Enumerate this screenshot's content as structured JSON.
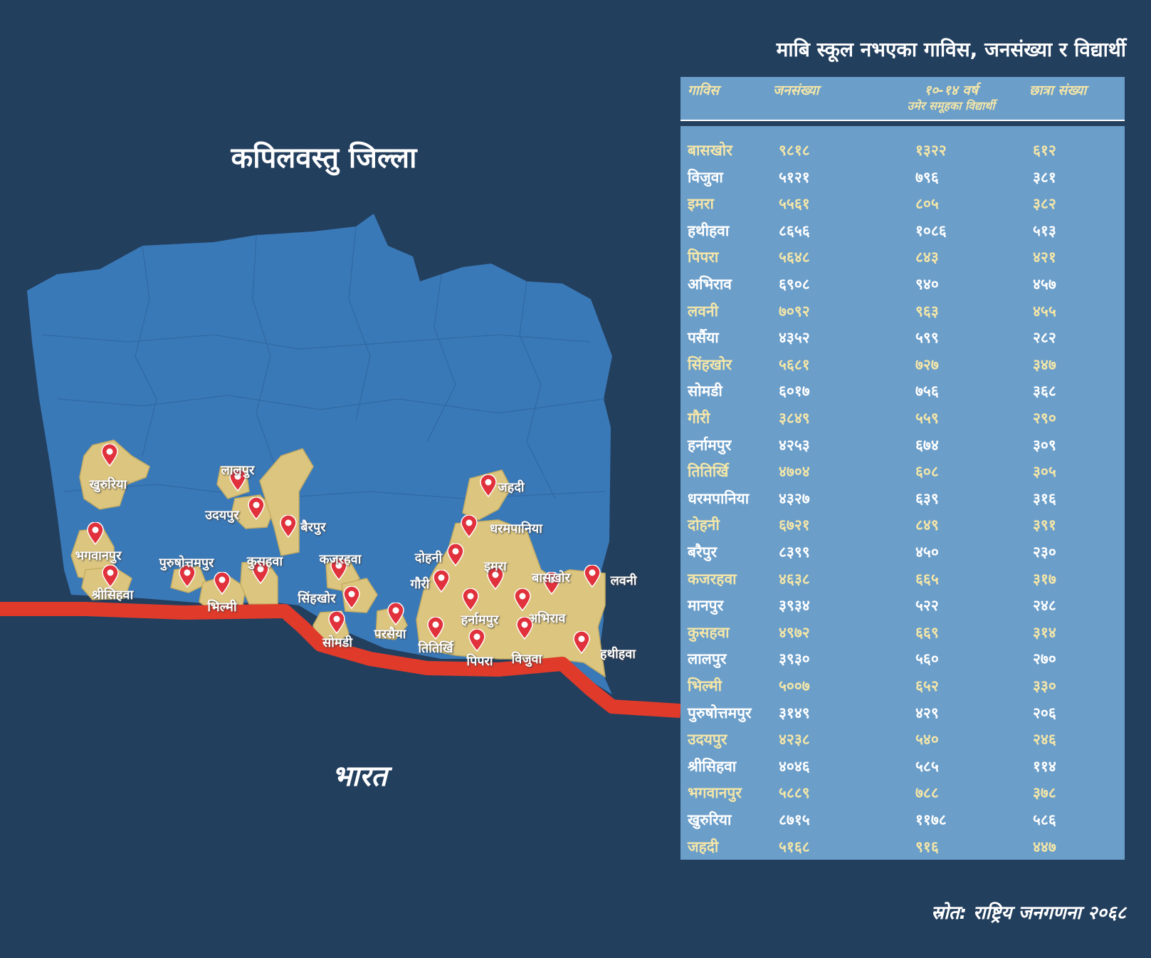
{
  "map": {
    "title": "कपिलवस्तु जिल्ला",
    "country_label": "भारत",
    "colors": {
      "background": "#233f5e",
      "district": "#3a79b8",
      "vdc_highlight": "#dcc57f",
      "border": "#e03a2a",
      "pin": "#e0313c"
    },
    "places": [
      {
        "name": "खुरुरिया"
      },
      {
        "name": "लालपुर"
      },
      {
        "name": "उदयपुर"
      },
      {
        "name": "बैरपुर"
      },
      {
        "name": "भगवानपुर"
      },
      {
        "name": "श्रीसिहवा"
      },
      {
        "name": "पुरुषोत्तमपुर"
      },
      {
        "name": "भिल्मी"
      },
      {
        "name": "कुसहवा"
      },
      {
        "name": "कजरहवा"
      },
      {
        "name": "सिंहखोर"
      },
      {
        "name": "सोमडी"
      },
      {
        "name": "परसैया"
      },
      {
        "name": "जहदी"
      },
      {
        "name": "धरमपानिया"
      },
      {
        "name": "दोहनी"
      },
      {
        "name": "गौरी"
      },
      {
        "name": "इमरा"
      },
      {
        "name": "बासखोर"
      },
      {
        "name": "लवनी"
      },
      {
        "name": "हर्नामपुर"
      },
      {
        "name": "अभिराव"
      },
      {
        "name": "तितिर्खि"
      },
      {
        "name": "पिपरा"
      },
      {
        "name": "विजुवा"
      },
      {
        "name": "हथीहवा"
      }
    ]
  },
  "table": {
    "title": "माबि स्कूल नभएका गाविस, जनसंख्या र विद्यार्थी",
    "headers": {
      "vdc": "गाविस",
      "population": "जनसंख्या",
      "students_line1": "१०-१४ वर्ष",
      "students_line2": "उमेर समूहका विद्यार्थी",
      "girls": "छात्रा संख्या"
    },
    "rows": [
      {
        "vdc": "बासखोर",
        "population": "९८१८",
        "students": "१३२२",
        "girls": "६१२"
      },
      {
        "vdc": "विजुवा",
        "population": "५१२१",
        "students": "७९६",
        "girls": "३८१"
      },
      {
        "vdc": "इमरा",
        "population": "५५६१",
        "students": "८०५",
        "girls": "३८२"
      },
      {
        "vdc": "हथीहवा",
        "population": "८६५६",
        "students": "१०८६",
        "girls": "५१३"
      },
      {
        "vdc": "पिपरा",
        "population": "५६४८",
        "students": "८४३",
        "girls": "४२१"
      },
      {
        "vdc": "अभिराव",
        "population": "६९०८",
        "students": "९४०",
        "girls": "४५७"
      },
      {
        "vdc": "लवनी",
        "population": "७०९२",
        "students": "९६३",
        "girls": "४५५"
      },
      {
        "vdc": "पर्सैया",
        "population": "४३५२",
        "students": "५९९",
        "girls": "२८२"
      },
      {
        "vdc": "सिंहखोर",
        "population": "५६८१",
        "students": "७२७",
        "girls": "३४७"
      },
      {
        "vdc": "सोमडी",
        "population": "६०१७",
        "students": "७५६",
        "girls": "३६८"
      },
      {
        "vdc": "गौरी",
        "population": "३८४९",
        "students": "५५९",
        "girls": "२९०"
      },
      {
        "vdc": "हर्नामपुर",
        "population": "४२५३",
        "students": "६७४",
        "girls": "३०९"
      },
      {
        "vdc": "तितिर्खि",
        "population": "४७०४",
        "students": "६०८",
        "girls": "३०५"
      },
      {
        "vdc": "धरमपानिया",
        "population": "४३२७",
        "students": "६३९",
        "girls": "३१६"
      },
      {
        "vdc": "दोहनी",
        "population": "६७२१",
        "students": "८४९",
        "girls": "३९१"
      },
      {
        "vdc": "बरैपुर",
        "population": "८३९९",
        "students": "४५०",
        "girls": "२३०"
      },
      {
        "vdc": "कजरहवा",
        "population": "४६३८",
        "students": "६६५",
        "girls": "३१७"
      },
      {
        "vdc": "मानपुर",
        "population": "३९३४",
        "students": "५२२",
        "girls": "२४८"
      },
      {
        "vdc": "कुसहवा",
        "population": "४९७२",
        "students": "६६९",
        "girls": "३१४"
      },
      {
        "vdc": "लालपुर",
        "population": "३९३०",
        "students": "५६०",
        "girls": "२७०"
      },
      {
        "vdc": "भिल्मी",
        "population": "५००७",
        "students": "६५२",
        "girls": "३३०"
      },
      {
        "vdc": "पुरुषोत्तमपुर",
        "population": "३१४९",
        "students": "४२९",
        "girls": "२०६"
      },
      {
        "vdc": "उदयपुर",
        "population": "४२३८",
        "students": "५४०",
        "girls": "२४६"
      },
      {
        "vdc": "श्रीसिहवा",
        "population": "४०४६",
        "students": "५८५",
        "girls": "११४"
      },
      {
        "vdc": "भगवानपुर",
        "population": "५८८९",
        "students": "७८८",
        "girls": "३७८"
      },
      {
        "vdc": "खुरुरिया",
        "population": "८७१५",
        "students": "११७८",
        "girls": "५८६"
      },
      {
        "vdc": "जहदी",
        "population": "५१६८",
        "students": "९१६",
        "girls": "४४७"
      }
    ]
  },
  "source": "स्रोत: राष्ट्रिय जनगणना २०६८"
}
